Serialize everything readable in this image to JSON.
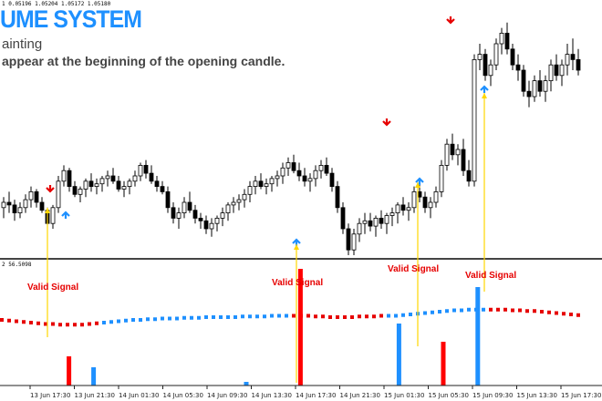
{
  "header": {
    "ticker": "1 0.05196 1.05204 1.05172 1.05180",
    "system_title": "UME SYSTEM",
    "subtitle": "ainting",
    "note": "appear at the beginning of the opening candle."
  },
  "indicator": {
    "label": "2 56.5098"
  },
  "signals": [
    {
      "label": "Valid Signal"
    },
    {
      "label": "Valid Signal"
    },
    {
      "label": "Valid Signal"
    },
    {
      "label": "Valid Signal"
    }
  ],
  "time_axis": {
    "labels": [
      "13 Jun 17:30",
      "13 Jun 21:30",
      "14 Jun 01:30",
      "14 Jun 05:30",
      "14 Jun 09:30",
      "14 Jun 13:30",
      "14 Jun 17:30",
      "14 Jun 21:30",
      "15 Jun 01:30",
      "15 Jun 05:30",
      "15 Jun 09:30",
      "15 Jun 13:30",
      "15 Jun 17:30"
    ]
  },
  "colors": {
    "bull_arrow": "#1e90ff",
    "bear_arrow": "#e60000",
    "signal_line": "#ffd700",
    "line_red": "#e60000",
    "line_blue": "#1e90ff",
    "bar_red": "#ff0000",
    "bar_blue": "#1e90ff"
  },
  "icons": {
    "up_arrow": "arrow-up-icon",
    "down_arrow": "arrow-down-icon"
  },
  "chart_data": [
    {
      "type": "candlestick",
      "title": "",
      "xlabel": "",
      "ylabel": "",
      "y_unit": "price_level_relative",
      "candles": [
        [
          214,
          218,
          210,
          216
        ],
        [
          216,
          220,
          212,
          215
        ],
        [
          215,
          217,
          209,
          212
        ],
        [
          212,
          216,
          210,
          214
        ],
        [
          214,
          219,
          212,
          217
        ],
        [
          217,
          222,
          214,
          220
        ],
        [
          220,
          221,
          214,
          216
        ],
        [
          216,
          218,
          212,
          213
        ],
        [
          213,
          214,
          206,
          208
        ],
        [
          208,
          215,
          206,
          214
        ],
        [
          214,
          226,
          212,
          224
        ],
        [
          224,
          230,
          222,
          228
        ],
        [
          228,
          229,
          220,
          222
        ],
        [
          222,
          224,
          218,
          219
        ],
        [
          219,
          222,
          216,
          221
        ],
        [
          221,
          225,
          218,
          224
        ],
        [
          224,
          227,
          220,
          222
        ],
        [
          222,
          225,
          219,
          223
        ],
        [
          223,
          226,
          220,
          225
        ],
        [
          225,
          228,
          222,
          226
        ],
        [
          226,
          229,
          223,
          224
        ],
        [
          224,
          226,
          220,
          221
        ],
        [
          221,
          224,
          218,
          222
        ],
        [
          222,
          225,
          219,
          224
        ],
        [
          224,
          228,
          222,
          226
        ],
        [
          226,
          231,
          224,
          230
        ],
        [
          230,
          232,
          225,
          227
        ],
        [
          227,
          230,
          223,
          224
        ],
        [
          224,
          226,
          220,
          222
        ],
        [
          222,
          224,
          219,
          220
        ],
        [
          220,
          222,
          212,
          214
        ],
        [
          214,
          216,
          208,
          210
        ],
        [
          210,
          214,
          206,
          212
        ],
        [
          212,
          218,
          210,
          216
        ],
        [
          216,
          220,
          212,
          213
        ],
        [
          213,
          215,
          208,
          210
        ],
        [
          210,
          212,
          206,
          209
        ],
        [
          209,
          211,
          204,
          206
        ],
        [
          206,
          210,
          203,
          208
        ],
        [
          208,
          211,
          205,
          210
        ],
        [
          210,
          214,
          207,
          212
        ],
        [
          212,
          216,
          209,
          215
        ],
        [
          215,
          218,
          212,
          216
        ],
        [
          216,
          219,
          213,
          217
        ],
        [
          217,
          221,
          214,
          219
        ],
        [
          219,
          224,
          216,
          222
        ],
        [
          222,
          226,
          219,
          224
        ],
        [
          224,
          227,
          221,
          222
        ],
        [
          222,
          225,
          219,
          223
        ],
        [
          223,
          226,
          220,
          225
        ],
        [
          225,
          228,
          222,
          226
        ],
        [
          226,
          231,
          223,
          229
        ],
        [
          229,
          233,
          226,
          231
        ],
        [
          231,
          234,
          227,
          228
        ],
        [
          228,
          231,
          224,
          226
        ],
        [
          226,
          229,
          222,
          224
        ],
        [
          224,
          227,
          220,
          225
        ],
        [
          225,
          230,
          222,
          228
        ],
        [
          228,
          232,
          225,
          230
        ],
        [
          230,
          233,
          226,
          227
        ],
        [
          227,
          229,
          220,
          222
        ],
        [
          222,
          224,
          212,
          214
        ],
        [
          214,
          216,
          204,
          206
        ],
        [
          206,
          208,
          196,
          198
        ],
        [
          198,
          206,
          196,
          204
        ],
        [
          204,
          210,
          201,
          208
        ],
        [
          208,
          212,
          204,
          209
        ],
        [
          209,
          212,
          205,
          207
        ],
        [
          207,
          211,
          203,
          210
        ],
        [
          210,
          213,
          206,
          208
        ],
        [
          208,
          212,
          204,
          211
        ],
        [
          211,
          214,
          207,
          212
        ],
        [
          212,
          216,
          208,
          215
        ],
        [
          215,
          218,
          211,
          213
        ],
        [
          213,
          216,
          209,
          214
        ],
        [
          214,
          222,
          212,
          220
        ],
        [
          220,
          225,
          216,
          218
        ],
        [
          218,
          220,
          212,
          214
        ],
        [
          214,
          218,
          210,
          216
        ],
        [
          216,
          222,
          214,
          220
        ],
        [
          220,
          232,
          218,
          230
        ],
        [
          230,
          240,
          228,
          238
        ],
        [
          238,
          242,
          232,
          234
        ],
        [
          234,
          238,
          230,
          236
        ],
        [
          236,
          240,
          226,
          228
        ],
        [
          228,
          232,
          222,
          224
        ],
        [
          224,
          272,
          222,
          270
        ],
        [
          270,
          276,
          266,
          272
        ],
        [
          272,
          274,
          262,
          264
        ],
        [
          264,
          270,
          260,
          268
        ],
        [
          268,
          278,
          266,
          276
        ],
        [
          276,
          282,
          272,
          280
        ],
        [
          280,
          284,
          272,
          274
        ],
        [
          274,
          276,
          266,
          268
        ],
        [
          268,
          272,
          262,
          266
        ],
        [
          266,
          268,
          256,
          258
        ],
        [
          258,
          262,
          252,
          256
        ],
        [
          256,
          264,
          254,
          262
        ],
        [
          262,
          266,
          256,
          258
        ],
        [
          258,
          264,
          254,
          262
        ],
        [
          262,
          270,
          258,
          268
        ],
        [
          268,
          272,
          262,
          264
        ],
        [
          264,
          270,
          260,
          268
        ],
        [
          268,
          276,
          264,
          272
        ],
        [
          272,
          278,
          266,
          270
        ],
        [
          270,
          274,
          264,
          266
        ]
      ]
    },
    {
      "type": "line",
      "title": "",
      "series": [
        {
          "values": [
            52,
            51,
            50,
            49,
            48,
            47,
            46,
            46,
            45,
            45,
            45,
            45,
            46,
            47,
            48,
            49,
            50,
            51,
            52,
            52,
            53,
            53,
            54,
            54,
            54,
            55,
            55,
            55,
            56,
            56,
            56,
            56,
            56,
            57,
            57,
            57,
            57,
            58,
            58,
            58,
            58,
            58,
            58,
            57,
            57,
            56,
            56,
            56,
            56,
            57,
            57,
            57,
            58,
            58,
            58,
            59,
            60,
            61,
            62,
            63,
            64,
            65,
            66,
            66,
            67,
            67,
            67,
            67,
            67,
            67,
            66,
            66,
            65,
            65,
            64,
            63,
            62,
            61,
            60,
            59
          ]
        }
      ]
    },
    {
      "type": "bar",
      "title": "",
      "series": [
        {
          "name": "red",
          "points": [
            [
              14,
              8
            ],
            [
              61,
              32
            ],
            [
              90,
              12
            ]
          ]
        },
        {
          "name": "blue",
          "points": [
            [
              19,
              5
            ],
            [
              50,
              1
            ],
            [
              81,
              17
            ],
            [
              97,
              27
            ]
          ]
        }
      ]
    }
  ]
}
